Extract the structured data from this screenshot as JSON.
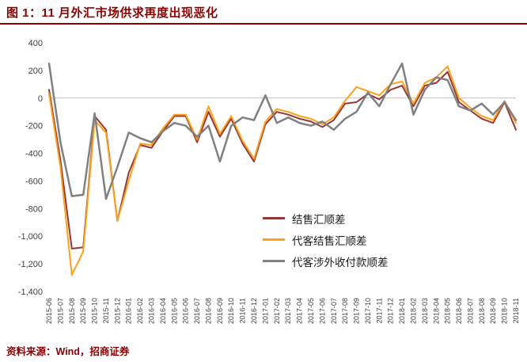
{
  "title": "图 1：11 月外汇市场供求再度出现恶化",
  "source": "资料来源：Wind，招商证券",
  "colors": {
    "title": "#8B0000",
    "accent_line": "#8B0000",
    "axis_text": "#404040",
    "zero_line": "#BFBFBF",
    "series_red": "#953735",
    "series_orange": "#FFA117",
    "series_gray": "#808080"
  },
  "chart_data": {
    "type": "line",
    "title": "11 月外汇市场供求再度出现恶化",
    "xlabel": "",
    "ylabel": "",
    "ylim": [
      -1400,
      400
    ],
    "ytick_step": 200,
    "grid": false,
    "legend_position": "center-right",
    "categories": [
      "2015-06",
      "2015-07",
      "2015-08",
      "2015-09",
      "2015-10",
      "2015-11",
      "2015-12",
      "2016-01",
      "2016-02",
      "2016-03",
      "2016-04",
      "2016-05",
      "2016-06",
      "2016-07",
      "2016-08",
      "2016-09",
      "2016-10",
      "2016-11",
      "2016-12",
      "2017-01",
      "2017-02",
      "2017-03",
      "2017-04",
      "2017-05",
      "2017-06",
      "2017-07",
      "2017-08",
      "2017-09",
      "2017-10",
      "2017-11",
      "2017-12",
      "2018-01",
      "2018-02",
      "2018-03",
      "2018-04",
      "2018-05",
      "2018-06",
      "2018-07",
      "2018-08",
      "2018-09",
      "2018-10",
      "2018-11"
    ],
    "series": [
      {
        "name": "结售汇顺差",
        "color": "#953735",
        "width": 2,
        "values": [
          60,
          -450,
          -1090,
          -1080,
          -130,
          -230,
          -890,
          -540,
          -340,
          -360,
          -240,
          -130,
          -130,
          -320,
          -100,
          -280,
          -150,
          -330,
          -460,
          -190,
          -100,
          -120,
          -150,
          -170,
          -210,
          -160,
          -40,
          -30,
          30,
          -10,
          60,
          90,
          -60,
          90,
          110,
          190,
          -30,
          -90,
          -150,
          -180,
          -30,
          -230
        ]
      },
      {
        "name": "代客结售汇顺差",
        "color": "#FFA117",
        "width": 2,
        "values": [
          30,
          -500,
          -1280,
          -1110,
          -160,
          -250,
          -890,
          -600,
          -330,
          -340,
          -220,
          -120,
          -120,
          -300,
          -60,
          -260,
          -130,
          -310,
          -440,
          -170,
          -80,
          -100,
          -130,
          -150,
          -190,
          -140,
          -20,
          80,
          50,
          20,
          100,
          120,
          -40,
          110,
          150,
          230,
          0,
          -70,
          -130,
          -160,
          -20,
          -180
        ]
      },
      {
        "name": "代客涉外收付款顺差",
        "color": "#808080",
        "width": 2.5,
        "values": [
          250,
          -320,
          -710,
          -700,
          -110,
          -730,
          -500,
          -250,
          -290,
          -320,
          -240,
          -180,
          -200,
          -280,
          -200,
          -460,
          -200,
          -140,
          -160,
          20,
          -180,
          -140,
          -180,
          -200,
          -170,
          -230,
          -150,
          -100,
          40,
          -60,
          100,
          250,
          -120,
          60,
          150,
          130,
          -60,
          -90,
          -40,
          -120,
          -30,
          -160
        ]
      }
    ]
  }
}
